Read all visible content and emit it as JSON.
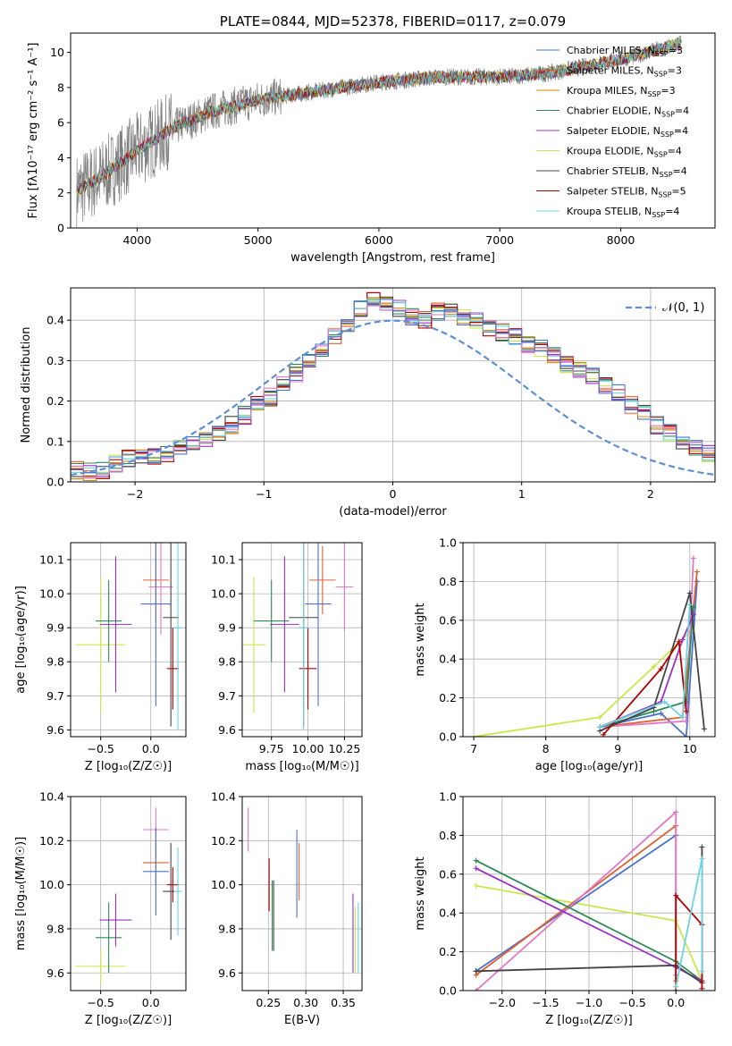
{
  "chart_data": [
    {
      "type": "line",
      "title": "PLATE=0844, MJD=52378, FIBERID=0117, z=0.079",
      "xlabel": "wavelength [Angstrom, rest frame]",
      "ylabel": "Flux [fλ10⁻¹⁷ erg cm⁻² s⁻¹ A⁻¹]",
      "xlim": [
        3450,
        8780
      ],
      "ylim": [
        0,
        11.1
      ],
      "xticks": [
        4000,
        5000,
        6000,
        7000,
        8000
      ],
      "yticks": [
        0,
        2,
        4,
        6,
        8,
        10
      ],
      "legend_placement": "upper-right",
      "series": [
        {
          "name": "Chabrier MILES, N_SSP=3",
          "color": "#4c72d0"
        },
        {
          "name": "Salpeter MILES, N_SSP=3",
          "color": "#e0602d"
        },
        {
          "name": "Kroupa MILES, N_SSP=3",
          "color": "#d98a00"
        },
        {
          "name": "Chabrier ELODIE, N_SSP=4",
          "color": "#2e8b57"
        },
        {
          "name": "Salpeter ELODIE, N_SSP=4",
          "color": "#9b30c8"
        },
        {
          "name": "Kroupa ELODIE, N_SSP=4",
          "color": "#c7e84a"
        },
        {
          "name": "Chabrier STELIB, N_SSP=4",
          "color": "#444444"
        },
        {
          "name": "Salpeter STELIB, N_SSP=5",
          "color": "#b30000"
        },
        {
          "name": "Kroupa STELIB, N_SSP=4",
          "color": "#6ad4e0"
        }
      ],
      "continuum": {
        "x": [
          3500,
          3700,
          4000,
          4300,
          4600,
          5000,
          5500,
          6000,
          6500,
          7000,
          7400,
          8000,
          8500
        ],
        "y": [
          2.1,
          2.9,
          4.4,
          5.7,
          6.6,
          7.3,
          7.8,
          8.3,
          8.6,
          8.6,
          8.8,
          9.6,
          10.5
        ]
      }
    },
    {
      "type": "histogram",
      "xlabel": "(data-model)/error",
      "ylabel": "Normed distribution",
      "xlim": [
        -2.5,
        2.5
      ],
      "ylim": [
        0,
        0.48
      ],
      "xticks": [
        -2,
        -1,
        0,
        1,
        2
      ],
      "yticks": [
        0.0,
        0.1,
        0.2,
        0.3,
        0.4
      ],
      "legend": "𝒩(0, 1)",
      "gaussian_color": "#5b8fd6",
      "bin_width": 0.1,
      "bin_start": -2.5,
      "base_values": [
        0.03,
        0.025,
        0.03,
        0.045,
        0.06,
        0.065,
        0.06,
        0.065,
        0.08,
        0.09,
        0.11,
        0.125,
        0.14,
        0.165,
        0.19,
        0.21,
        0.24,
        0.27,
        0.3,
        0.33,
        0.36,
        0.39,
        0.43,
        0.45,
        0.44,
        0.43,
        0.41,
        0.4,
        0.42,
        0.42,
        0.41,
        0.4,
        0.38,
        0.37,
        0.36,
        0.34,
        0.33,
        0.31,
        0.29,
        0.28,
        0.26,
        0.24,
        0.22,
        0.19,
        0.17,
        0.14,
        0.12,
        0.1,
        0.08,
        0.07,
        0.06,
        0.05,
        0.05,
        0.045,
        0.04,
        0.035,
        0.03,
        0.03,
        0.025,
        0.025
      ]
    },
    {
      "type": "scatter",
      "xlabel": "Z [log₁₀(Z/Z☉)]",
      "ylabel": "age  [log₁₀(age/yr)]",
      "xlim": [
        -0.8,
        0.35
      ],
      "ylim": [
        9.58,
        10.15
      ],
      "xticks": [
        -0.5,
        0.0
      ],
      "yticks": [
        9.6,
        9.7,
        9.8,
        9.9,
        10.0,
        10.1
      ],
      "points": [
        {
          "x": -0.5,
          "y": 9.85,
          "xerr": 0.25,
          "yerr": 0.2,
          "c": "#c7e84a"
        },
        {
          "x": -0.42,
          "y": 9.92,
          "xerr": 0.13,
          "yerr": 0.12,
          "c": "#2e8b57"
        },
        {
          "x": -0.35,
          "y": 9.91,
          "xerr": 0.16,
          "yerr": 0.2,
          "c": "#9b30c8"
        },
        {
          "x": 0.05,
          "y": 10.04,
          "xerr": 0.13,
          "yerr": 0.12,
          "c": "#e0602d"
        },
        {
          "x": 0.1,
          "y": 10.02,
          "xerr": 0.12,
          "yerr": 0.14,
          "c": "#e377c2"
        },
        {
          "x": 0.05,
          "y": 9.97,
          "xerr": 0.15,
          "yerr": 0.3,
          "c": "#4c72d0"
        },
        {
          "x": 0.2,
          "y": 9.93,
          "xerr": 0.08,
          "yerr": 0.32,
          "c": "#444444"
        },
        {
          "x": 0.22,
          "y": 9.78,
          "xerr": 0.06,
          "yerr": 0.12,
          "c": "#b30000"
        },
        {
          "x": 0.27,
          "y": 9.9,
          "xerr": 0.04,
          "yerr": 0.3,
          "c": "#6ad4e0"
        }
      ]
    },
    {
      "type": "scatter",
      "xlabel": "mass [log₁₀(M/M☉)]",
      "ylabel": "",
      "xlim": [
        9.55,
        10.37
      ],
      "ylim": [
        9.58,
        10.15
      ],
      "xticks": [
        9.75,
        10.0,
        10.25
      ],
      "yticks": [
        9.6,
        9.7,
        9.8,
        9.9,
        10.0,
        10.1
      ],
      "points": [
        {
          "x": 9.63,
          "y": 9.85,
          "xerr": 0.08,
          "yerr": 0.2,
          "c": "#c7e84a"
        },
        {
          "x": 9.75,
          "y": 9.92,
          "xerr": 0.12,
          "yerr": 0.12,
          "c": "#2e8b57"
        },
        {
          "x": 9.84,
          "y": 9.91,
          "xerr": 0.1,
          "yerr": 0.2,
          "c": "#9b30c8"
        },
        {
          "x": 10.1,
          "y": 10.04,
          "xerr": 0.09,
          "yerr": 0.1,
          "c": "#e0602d"
        },
        {
          "x": 10.25,
          "y": 10.02,
          "xerr": 0.06,
          "yerr": 0.13,
          "c": "#e377c2"
        },
        {
          "x": 10.07,
          "y": 9.97,
          "xerr": 0.09,
          "yerr": 0.3,
          "c": "#4c72d0"
        },
        {
          "x": 9.97,
          "y": 9.93,
          "xerr": 0.1,
          "yerr": 0.32,
          "c": "#444444"
        },
        {
          "x": 10.0,
          "y": 9.78,
          "xerr": 0.06,
          "yerr": 0.12,
          "c": "#b30000"
        },
        {
          "x": 9.97,
          "y": 9.9,
          "xerr": 0.04,
          "yerr": 0.3,
          "c": "#6ad4e0"
        }
      ]
    },
    {
      "type": "line",
      "xlabel": "age  [log₁₀(age/yr)]",
      "ylabel": "mass weight",
      "xlim": [
        6.85,
        10.35
      ],
      "ylim": [
        0,
        1.0
      ],
      "xticks": [
        7,
        8,
        9,
        10
      ],
      "yticks": [
        0.0,
        0.2,
        0.4,
        0.6,
        0.8,
        1.0
      ],
      "series": [
        {
          "c": "#c7e84a",
          "x": [
            7.0,
            8.75,
            9.5,
            10.0
          ],
          "y": [
            0.0,
            0.1,
            0.36,
            0.54
          ]
        },
        {
          "c": "#4c72d0",
          "x": [
            8.75,
            9.6,
            9.95,
            10.1
          ],
          "y": [
            0.05,
            0.12,
            0.0,
            0.8
          ]
        },
        {
          "c": "#e0602d",
          "x": [
            8.75,
            9.9,
            10.1
          ],
          "y": [
            0.05,
            0.1,
            0.85
          ]
        },
        {
          "c": "#e377c2",
          "x": [
            8.75,
            9.95,
            10.05
          ],
          "y": [
            0.05,
            0.08,
            0.92
          ]
        },
        {
          "c": "#2e8b57",
          "x": [
            8.75,
            9.5,
            9.95,
            10.05
          ],
          "y": [
            0.05,
            0.13,
            0.18,
            0.67
          ]
        },
        {
          "c": "#9b30c8",
          "x": [
            8.75,
            9.6,
            9.9,
            10.05
          ],
          "y": [
            0.05,
            0.18,
            0.5,
            0.63
          ]
        },
        {
          "c": "#444444",
          "x": [
            8.75,
            9.5,
            10.0,
            10.2
          ],
          "y": [
            0.03,
            0.15,
            0.74,
            0.04
          ]
        },
        {
          "c": "#b30000",
          "x": [
            8.8,
            9.6,
            9.85,
            9.95
          ],
          "y": [
            0.01,
            0.35,
            0.49,
            0.13
          ]
        },
        {
          "c": "#6ad4e0",
          "x": [
            8.75,
            9.65,
            9.9,
            10.0
          ],
          "y": [
            0.05,
            0.18,
            0.1,
            0.68
          ]
        }
      ]
    },
    {
      "type": "scatter",
      "xlabel": "Z [log₁₀(Z/Z☉)]",
      "ylabel": "mass [log₁₀(M/M☉)]",
      "xlim": [
        -0.8,
        0.35
      ],
      "ylim": [
        9.52,
        10.4
      ],
      "xticks": [
        -0.5,
        0.0
      ],
      "yticks": [
        9.6,
        9.8,
        10.0,
        10.2,
        10.4
      ],
      "points": [
        {
          "x": -0.5,
          "y": 9.63,
          "xerr": 0.25,
          "yerr": 0.08,
          "c": "#c7e84a"
        },
        {
          "x": -0.42,
          "y": 9.76,
          "xerr": 0.13,
          "yerr": 0.16,
          "c": "#2e8b57"
        },
        {
          "x": -0.35,
          "y": 9.84,
          "xerr": 0.16,
          "yerr": 0.12,
          "c": "#9b30c8"
        },
        {
          "x": 0.05,
          "y": 10.1,
          "xerr": 0.13,
          "yerr": 0.1,
          "c": "#e0602d"
        },
        {
          "x": 0.05,
          "y": 10.25,
          "xerr": 0.13,
          "yerr": 0.1,
          "c": "#e377c2"
        },
        {
          "x": 0.05,
          "y": 10.06,
          "xerr": 0.13,
          "yerr": 0.2,
          "c": "#4c72d0"
        },
        {
          "x": 0.2,
          "y": 9.97,
          "xerr": 0.08,
          "yerr": 0.22,
          "c": "#444444"
        },
        {
          "x": 0.22,
          "y": 10.0,
          "xerr": 0.06,
          "yerr": 0.08,
          "c": "#b30000"
        },
        {
          "x": 0.27,
          "y": 9.97,
          "xerr": 0.04,
          "yerr": 0.2,
          "c": "#6ad4e0"
        }
      ]
    },
    {
      "type": "scatter",
      "xlabel": "E(B-V)",
      "ylabel": "",
      "xlim": [
        0.215,
        0.375
      ],
      "ylim": [
        9.52,
        10.4
      ],
      "xticks": [
        0.25,
        0.3,
        0.35
      ],
      "yticks": [
        9.6,
        9.8,
        10.0,
        10.2,
        10.4
      ],
      "points": [
        {
          "x": 0.223,
          "y": 10.25,
          "yerr": 0.1,
          "c": "#e377c2"
        },
        {
          "x": 0.251,
          "y": 10.0,
          "yerr": 0.12,
          "c": "#b30000"
        },
        {
          "x": 0.255,
          "y": 9.86,
          "yerr": 0.16,
          "c": "#2e8b57"
        },
        {
          "x": 0.257,
          "y": 9.86,
          "yerr": 0.16,
          "c": "#444444"
        },
        {
          "x": 0.288,
          "y": 10.05,
          "yerr": 0.2,
          "c": "#4c72d0"
        },
        {
          "x": 0.291,
          "y": 10.06,
          "yerr": 0.13,
          "c": "#e0602d"
        },
        {
          "x": 0.363,
          "y": 9.78,
          "yerr": 0.18,
          "c": "#9b30c8"
        },
        {
          "x": 0.366,
          "y": 9.75,
          "yerr": 0.15,
          "c": "#c7e84a"
        },
        {
          "x": 0.37,
          "y": 9.76,
          "yerr": 0.16,
          "c": "#6ad4e0"
        }
      ]
    },
    {
      "type": "line",
      "xlabel": "Z [log₁₀(Z/Z☉)]",
      "ylabel": "mass weight",
      "xlim": [
        -2.45,
        0.45
      ],
      "ylim": [
        0,
        1.0
      ],
      "xticks": [
        -2.0,
        -1.5,
        -1.0,
        -0.5,
        0.0
      ],
      "yticks": [
        0.0,
        0.2,
        0.4,
        0.6,
        0.8,
        1.0
      ],
      "series": [
        {
          "c": "#c7e84a",
          "x": [
            -2.3,
            0.0,
            0.3
          ],
          "y": [
            0.54,
            0.36,
            0.05
          ]
        },
        {
          "c": "#4c72d0",
          "x": [
            -2.3,
            0.0
          ],
          "y": [
            0.1,
            0.8
          ]
        },
        {
          "c": "#e0602d",
          "x": [
            -2.3,
            0.0,
            0.0
          ],
          "y": [
            0.08,
            0.85,
            0.05
          ]
        },
        {
          "c": "#e377c2",
          "x": [
            -2.3,
            0.0,
            0.0
          ],
          "y": [
            0.0,
            0.92,
            0.08
          ]
        },
        {
          "c": "#2e8b57",
          "x": [
            -2.3,
            0.0,
            0.3
          ],
          "y": [
            0.67,
            0.15,
            0.05
          ]
        },
        {
          "c": "#9b30c8",
          "x": [
            -2.3,
            0.0,
            0.3
          ],
          "y": [
            0.63,
            0.12,
            0.05
          ]
        },
        {
          "c": "#444444",
          "x": [
            -2.3,
            0.0,
            0.3,
            0.3
          ],
          "y": [
            0.1,
            0.13,
            0.04,
            0.74
          ]
        },
        {
          "c": "#b30000",
          "x": [
            0.0,
            0.0,
            0.3,
            0.3
          ],
          "y": [
            0.0,
            0.49,
            0.34,
            0.01
          ]
        },
        {
          "c": "#6ad4e0",
          "x": [
            0.0,
            0.3,
            0.3
          ],
          "y": [
            0.02,
            0.68,
            0.1
          ]
        }
      ]
    }
  ]
}
